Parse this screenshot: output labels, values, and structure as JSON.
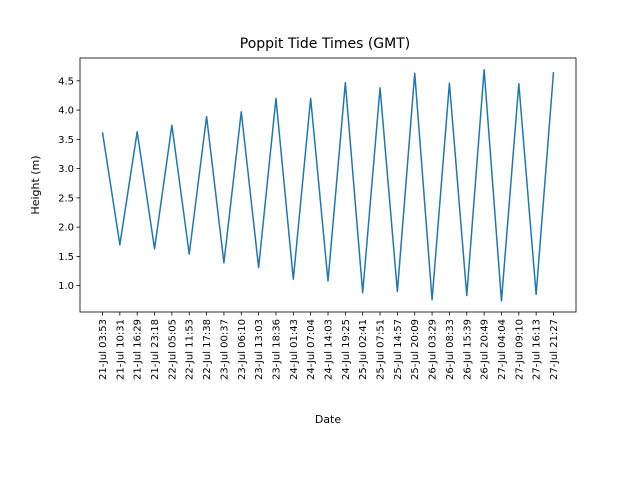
{
  "chart_data": {
    "type": "line",
    "title": "Poppit Tide Times (GMT)",
    "xlabel": "Date",
    "ylabel": "Height (m)",
    "x": [
      "21-Jul 03:53",
      "21-Jul 10:31",
      "21-Jul 16:29",
      "21-Jul 23:18",
      "22-Jul 05:05",
      "22-Jul 11:53",
      "22-Jul 17:38",
      "23-Jul 00:37",
      "23-Jul 06:10",
      "23-Jul 13:03",
      "23-Jul 18:36",
      "24-Jul 01:43",
      "24-Jul 07:04",
      "24-Jul 14:03",
      "24-Jul 19:25",
      "25-Jul 02:41",
      "25-Jul 07:51",
      "25-Jul 14:57",
      "25-Jul 20:09",
      "26-Jul 03:29",
      "26-Jul 08:33",
      "26-Jul 15:39",
      "26-Jul 20:49",
      "27-Jul 04:04",
      "27-Jul 09:10",
      "27-Jul 16:13",
      "27-Jul 21:27"
    ],
    "series": [
      {
        "values": [
          3.62,
          1.7,
          3.63,
          1.63,
          3.74,
          1.54,
          3.89,
          1.39,
          3.97,
          1.31,
          4.2,
          1.11,
          4.2,
          1.08,
          4.47,
          0.88,
          4.38,
          0.9,
          4.63,
          0.76,
          4.46,
          0.83,
          4.69,
          0.74,
          4.45,
          0.85,
          4.65
        ]
      }
    ],
    "yticks": [
      1.0,
      1.5,
      2.0,
      2.5,
      3.0,
      3.5,
      4.0,
      4.5
    ],
    "ytick_labels": [
      "1.0",
      "1.5",
      "2.0",
      "2.5",
      "3.0",
      "3.5",
      "4.0",
      "4.5"
    ],
    "ylim": [
      0.55,
      4.89
    ],
    "line_color": "#1f77b4",
    "grid": false,
    "legend": "none"
  }
}
